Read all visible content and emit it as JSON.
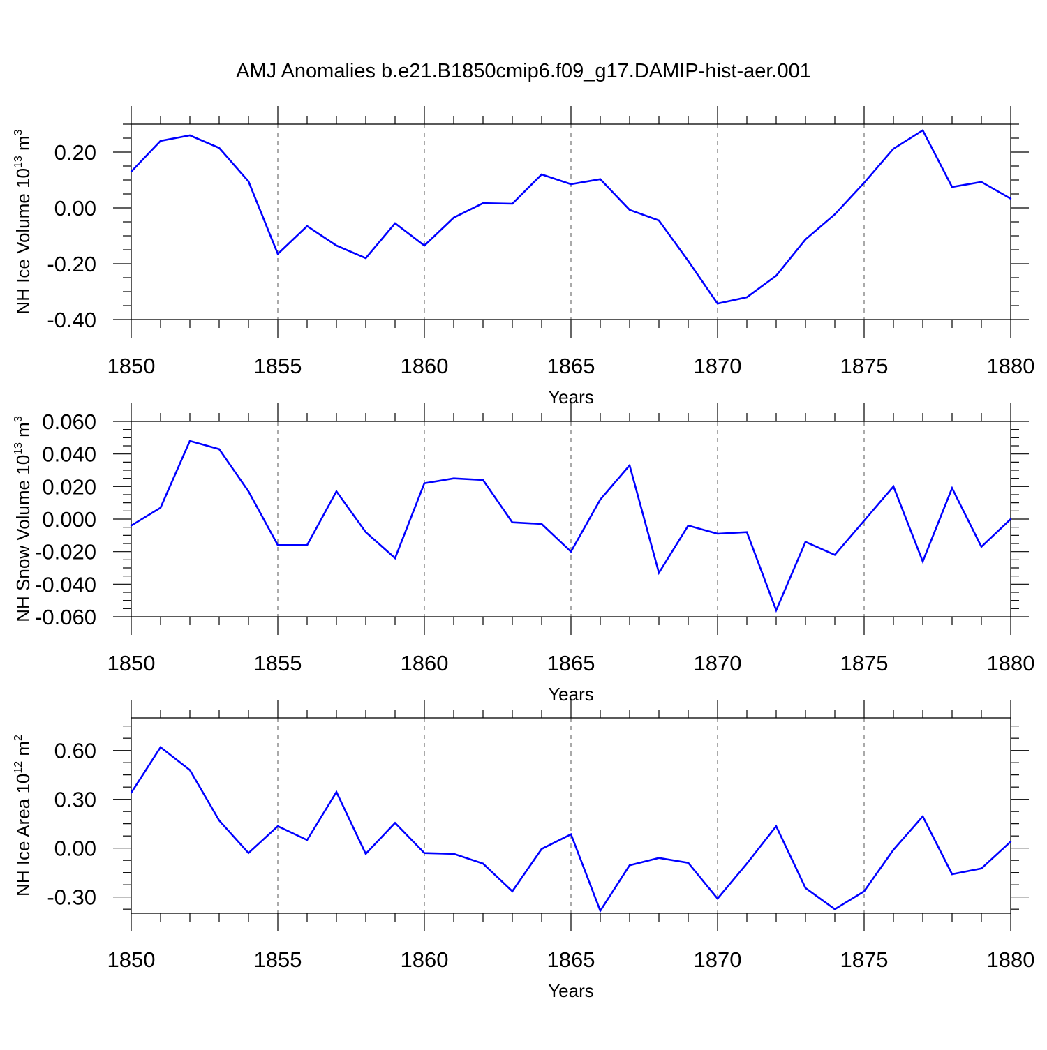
{
  "title": "AMJ Anomalies b.e21.B1850cmip6.f09_g17.DAMIP-hist-aer.001",
  "colors": {
    "line": "#0000ff",
    "axis": "#000000",
    "grid": "#555555",
    "background": "#ffffff"
  },
  "chart_data": [
    {
      "type": "line",
      "ylabel": "NH Ice Volume",
      "yunit": {
        "base": "10",
        "exp": "13",
        "unit": "m",
        "unit_exp": "3"
      },
      "xlabel": "Years",
      "xlim": [
        1850,
        1880
      ],
      "ylim": [
        -0.4,
        0.3
      ],
      "xticks": [
        1850,
        1855,
        1860,
        1865,
        1870,
        1875,
        1880
      ],
      "yticks": [
        -0.4,
        -0.2,
        0.0,
        0.2
      ],
      "ytick_labels": [
        "-0.40",
        "-0.20",
        "0.00",
        "0.20"
      ],
      "grid": "vertical dashed at major x ticks",
      "x": [
        1850,
        1851,
        1852,
        1853,
        1854,
        1855,
        1856,
        1857,
        1858,
        1859,
        1860,
        1861,
        1862,
        1863,
        1864,
        1865,
        1866,
        1867,
        1868,
        1869,
        1870,
        1871,
        1872,
        1873,
        1874,
        1875,
        1876,
        1877,
        1878,
        1879,
        1880
      ],
      "y": [
        0.13,
        0.24,
        0.26,
        0.215,
        0.095,
        -0.165,
        -0.065,
        -0.135,
        -0.18,
        -0.055,
        -0.135,
        -0.035,
        0.017,
        0.015,
        0.12,
        0.085,
        0.103,
        -0.007,
        -0.045,
        -0.19,
        -0.343,
        -0.32,
        -0.243,
        -0.113,
        -0.023,
        0.09,
        0.212,
        0.278,
        0.075,
        0.093,
        0.033
      ]
    },
    {
      "type": "line",
      "ylabel": "NH Snow Volume",
      "yunit": {
        "base": "10",
        "exp": "13",
        "unit": "m",
        "unit_exp": "3"
      },
      "xlabel": "Years",
      "xlim": [
        1850,
        1880
      ],
      "ylim": [
        -0.06,
        0.06
      ],
      "xticks": [
        1850,
        1855,
        1860,
        1865,
        1870,
        1875,
        1880
      ],
      "yticks": [
        -0.06,
        -0.04,
        -0.02,
        0.0,
        0.02,
        0.04,
        0.06
      ],
      "ytick_labels": [
        "-0.060",
        "-0.040",
        "-0.020",
        "0.000",
        "0.020",
        "0.040",
        "0.060"
      ],
      "grid": "vertical dashed at major x ticks",
      "x": [
        1850,
        1851,
        1852,
        1853,
        1854,
        1855,
        1856,
        1857,
        1858,
        1859,
        1860,
        1861,
        1862,
        1863,
        1864,
        1865,
        1866,
        1867,
        1868,
        1869,
        1870,
        1871,
        1872,
        1873,
        1874,
        1875,
        1876,
        1877,
        1878,
        1879,
        1880
      ],
      "y": [
        -0.004,
        0.007,
        0.048,
        0.043,
        0.017,
        -0.016,
        -0.016,
        0.017,
        -0.008,
        -0.024,
        0.022,
        0.025,
        0.024,
        -0.002,
        -0.003,
        -0.02,
        0.012,
        0.033,
        -0.033,
        -0.004,
        -0.009,
        -0.008,
        -0.056,
        -0.014,
        -0.022,
        -0.001,
        0.02,
        -0.026,
        0.019,
        -0.017,
        0.0
      ]
    },
    {
      "type": "line",
      "ylabel": "NH Ice Area",
      "yunit": {
        "base": "10",
        "exp": "12",
        "unit": "m",
        "unit_exp": "2"
      },
      "xlabel": "Years",
      "xlim": [
        1850,
        1880
      ],
      "ylim": [
        -0.4,
        0.8
      ],
      "xticks": [
        1850,
        1855,
        1860,
        1865,
        1870,
        1875,
        1880
      ],
      "yticks": [
        -0.3,
        0.0,
        0.3,
        0.6
      ],
      "ytick_labels": [
        "-0.30",
        "0.00",
        "0.30",
        "0.60"
      ],
      "grid": "vertical dashed at major x ticks",
      "x": [
        1850,
        1851,
        1852,
        1853,
        1854,
        1855,
        1856,
        1857,
        1858,
        1859,
        1860,
        1861,
        1862,
        1863,
        1864,
        1865,
        1866,
        1867,
        1868,
        1869,
        1870,
        1871,
        1872,
        1873,
        1874,
        1875,
        1876,
        1877,
        1878,
        1879,
        1880
      ],
      "y": [
        0.34,
        0.62,
        0.48,
        0.17,
        -0.03,
        0.135,
        0.05,
        0.345,
        -0.035,
        0.155,
        -0.03,
        -0.035,
        -0.095,
        -0.265,
        -0.005,
        0.085,
        -0.385,
        -0.105,
        -0.06,
        -0.09,
        -0.31,
        -0.095,
        0.135,
        -0.245,
        -0.375,
        -0.265,
        -0.01,
        0.195,
        -0.16,
        -0.125,
        0.04
      ]
    }
  ]
}
